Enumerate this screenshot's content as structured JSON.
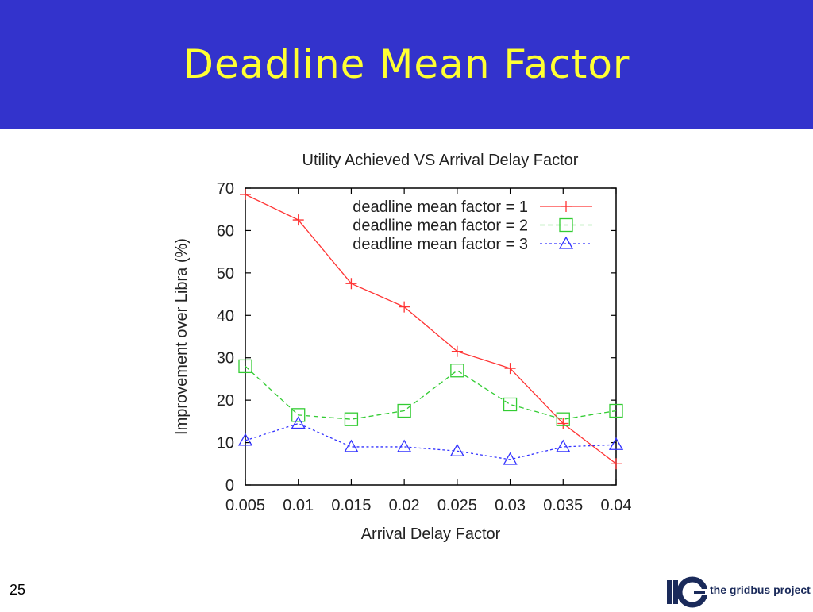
{
  "slide": {
    "title": "Deadline Mean Factor",
    "page_number": "25",
    "logo_text": "the gridbus project"
  },
  "colors": {
    "header_bg": "#3333cc",
    "title": "#ffff33"
  },
  "chart_data": {
    "type": "line",
    "title": "Utility Achieved VS Arrival Delay Factor",
    "xlabel": "Arrival Delay Factor",
    "ylabel": "Improvement over Libra (%)",
    "categories": [
      "0.005",
      "0.01",
      "0.015",
      "0.02",
      "0.025",
      "0.03",
      "0.035",
      "0.04"
    ],
    "ylim": [
      0,
      70
    ],
    "yticks": [
      0,
      10,
      20,
      30,
      40,
      50,
      60,
      70
    ],
    "legend_position": "top-right",
    "series": [
      {
        "name": "deadline mean factor = 1",
        "color": "#ff3333",
        "marker": "plus",
        "dash": "none",
        "values": [
          68.5,
          62.5,
          47.5,
          42,
          31.5,
          27.5,
          14.5,
          5
        ]
      },
      {
        "name": "deadline mean factor = 2",
        "color": "#33cc33",
        "marker": "square",
        "dash": "6,4",
        "values": [
          28,
          16.5,
          15.5,
          17.5,
          27,
          19,
          15.5,
          17.5
        ]
      },
      {
        "name": "deadline mean factor = 3",
        "color": "#3333ff",
        "marker": "triangle",
        "dash": "3,3",
        "values": [
          10.5,
          14.5,
          9,
          9,
          8,
          6,
          9,
          9.5
        ]
      }
    ]
  }
}
